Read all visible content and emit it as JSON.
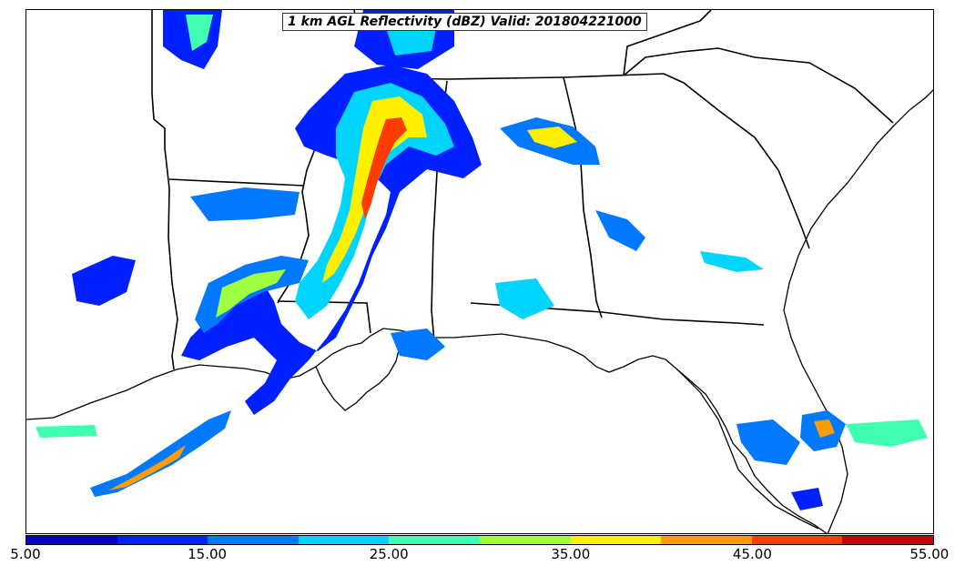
{
  "title": "1 km AGL Reflectivity (dBZ) Valid: 201804221000",
  "colorbar": {
    "min": 5,
    "max": 55,
    "tick_labels": [
      "5.00",
      "15.00",
      "25.00",
      "35.00",
      "45.00",
      "55.00"
    ],
    "colors": [
      "#0000c8",
      "#0020ff",
      "#0078ff",
      "#00d4ff",
      "#40ffb0",
      "#a0ff40",
      "#ffef00",
      "#ff9c00",
      "#ff3c00",
      "#c80000"
    ]
  }
}
